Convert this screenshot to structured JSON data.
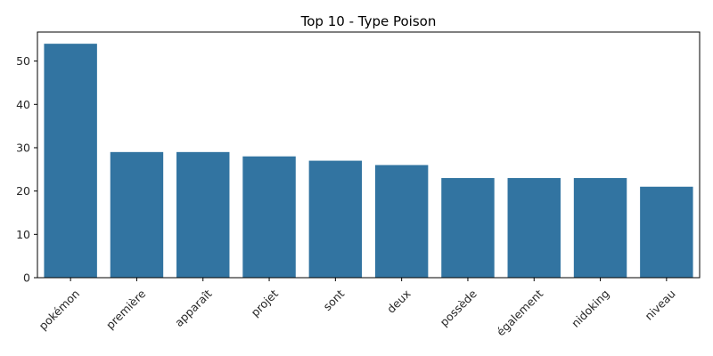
{
  "chart_data": {
    "type": "bar",
    "title": "Top 10 - Type Poison",
    "xlabel": "",
    "ylabel": "",
    "categories": [
      "pokémon",
      "première",
      "apparaît",
      "projet",
      "sont",
      "deux",
      "possède",
      "également",
      "nidoking",
      "niveau"
    ],
    "values": [
      54,
      29,
      29,
      28,
      27,
      26,
      23,
      23,
      23,
      21
    ],
    "ylim": [
      0,
      56.7
    ],
    "yticks": [
      0,
      10,
      20,
      30,
      40,
      50
    ],
    "xtick_rotation": 45,
    "grid": false,
    "bar_color": "#3274a1"
  }
}
